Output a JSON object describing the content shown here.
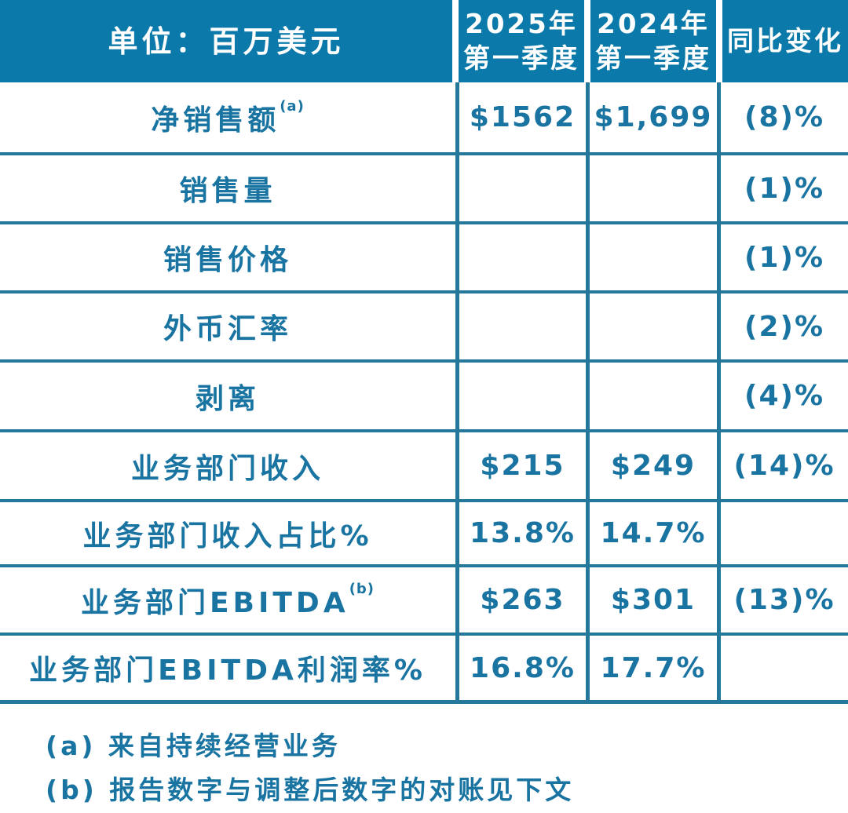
{
  "table": {
    "header": {
      "unit_label": "单位：百万美元",
      "col_2025_line1": "2025年",
      "col_2025_line2": "第一季度",
      "col_2024_line1": "2024年",
      "col_2024_line2": "第一季度",
      "col_yoy": "同比变化"
    },
    "rows": [
      {
        "label": "净销售额",
        "sup": "(a)",
        "q1_2025": "$1562",
        "q1_2024": "$1,699",
        "yoy": "(8)%"
      },
      {
        "label": "销售量",
        "sup": "",
        "q1_2025": "",
        "q1_2024": "",
        "yoy": "(1)%"
      },
      {
        "label": "销售价格",
        "sup": "",
        "q1_2025": "",
        "q1_2024": "",
        "yoy": "(1)%"
      },
      {
        "label": "外币汇率",
        "sup": "",
        "q1_2025": "",
        "q1_2024": "",
        "yoy": "(2)%"
      },
      {
        "label": "剥离",
        "sup": "",
        "q1_2025": "",
        "q1_2024": "",
        "yoy": "(4)%"
      },
      {
        "label": "业务部门收入",
        "sup": "",
        "q1_2025": "$215",
        "q1_2024": "$249",
        "yoy": "(14)%"
      },
      {
        "label": "业务部门收入占比%",
        "sup": "",
        "q1_2025": "13.8%",
        "q1_2024": "14.7%",
        "yoy": ""
      },
      {
        "label": "业务部门EBITDA",
        "sup": "(b)",
        "q1_2025": "$263",
        "q1_2024": "$301",
        "yoy": "(13)%"
      },
      {
        "label": "业务部门EBITDA利润率%",
        "sup": "",
        "q1_2025": "16.8%",
        "q1_2024": "17.7%",
        "yoy": ""
      }
    ],
    "footnotes": [
      "(a) 来自持续经营业务",
      "(b) 报告数字与调整后数字的对账见下文"
    ]
  },
  "colors": {
    "header_bg": "#0b79a9",
    "header_text": "#ffffff",
    "body_text": "#1a74a2",
    "grid_line": "#24789c"
  },
  "chart_data": {
    "type": "table",
    "title": "",
    "columns": [
      "单位：百万美元",
      "2025年第一季度",
      "2024年第一季度",
      "同比变化"
    ],
    "rows": [
      [
        "净销售额 (a)",
        "$1562",
        "$1,699",
        "(8)%"
      ],
      [
        "销售量",
        "",
        "",
        "(1)%"
      ],
      [
        "销售价格",
        "",
        "",
        "(1)%"
      ],
      [
        "外币汇率",
        "",
        "",
        "(2)%"
      ],
      [
        "剥离",
        "",
        "",
        "(4)%"
      ],
      [
        "业务部门收入",
        "$215",
        "$249",
        "(14)%"
      ],
      [
        "业务部门收入占比%",
        "13.8%",
        "14.7%",
        ""
      ],
      [
        "业务部门EBITDA (b)",
        "$263",
        "$301",
        "(13)%"
      ],
      [
        "业务部门EBITDA利润率%",
        "16.8%",
        "17.7%",
        ""
      ]
    ],
    "footnotes": [
      "(a) 来自持续经营业务",
      "(b) 报告数字与调整后数字的对账见下文"
    ]
  }
}
